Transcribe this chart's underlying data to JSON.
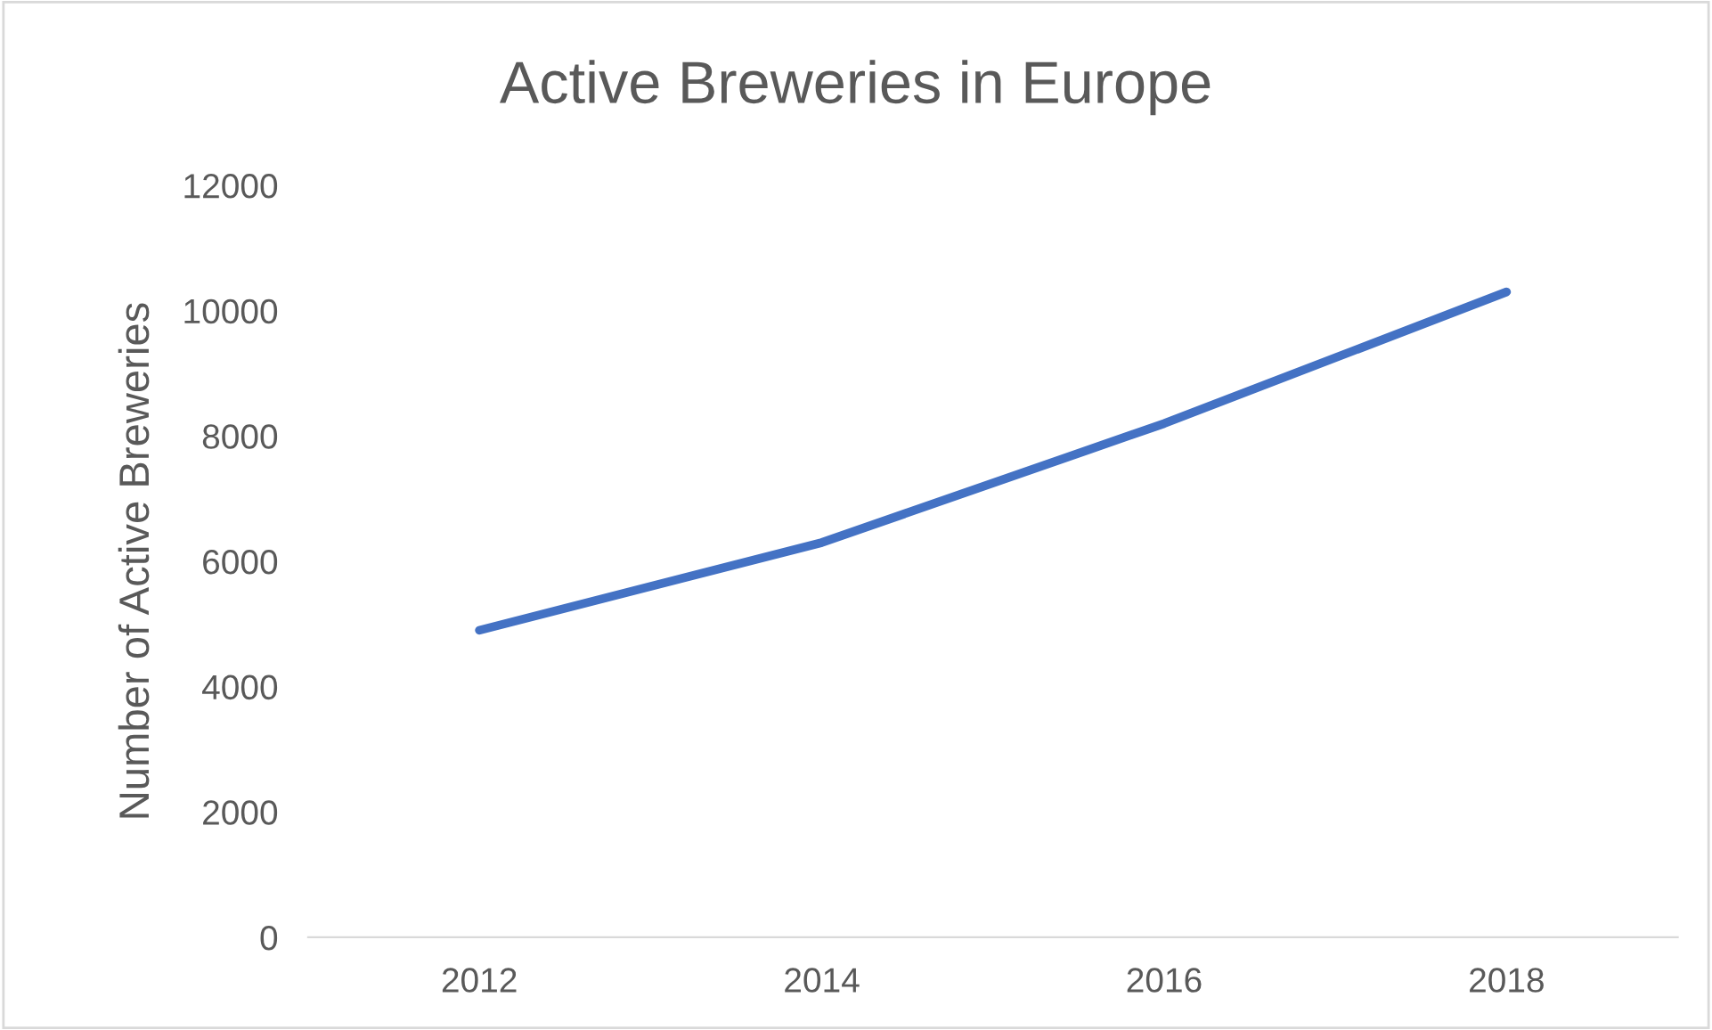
{
  "chart_data": {
    "type": "line",
    "title": "Active Breweries in Europe",
    "ylabel": "Number of Active Breweries",
    "categories": [
      "2012",
      "2014",
      "2016",
      "2018"
    ],
    "series": [
      {
        "color": "#4472c4",
        "values": [
          4900,
          6300,
          8200,
          10300
        ]
      }
    ],
    "ylim": [
      0,
      12000
    ],
    "yticks": [
      0,
      2000,
      4000,
      6000,
      8000,
      10000,
      12000
    ],
    "grid": false,
    "legend": false,
    "marker": "none",
    "line_style": "solid"
  }
}
